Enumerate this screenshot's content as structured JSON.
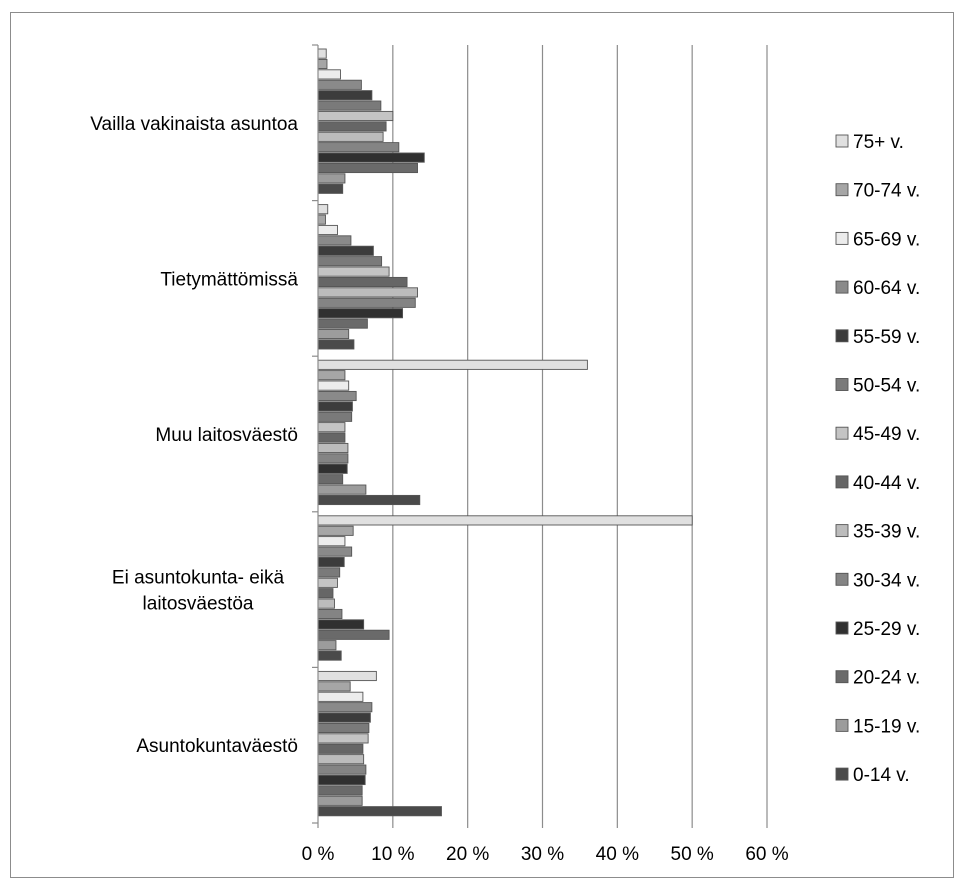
{
  "chart_data": {
    "type": "bar",
    "orientation": "horizontal",
    "categories": [
      [
        "Vailla vakinaista asuntoa"
      ],
      [
        "Tietymättömissä"
      ],
      [
        "Muu laitosväestö"
      ],
      [
        "Ei asuntokunta- eikä",
        "laitosväestöa"
      ],
      [
        "Asuntokuntaväestö"
      ]
    ],
    "series": [
      {
        "name": "75+ v.",
        "color": "#e0e0e0",
        "values": [
          1.1,
          1.3,
          36.0,
          50.0,
          7.8
        ]
      },
      {
        "name": "70-74 v.",
        "color": "#a6a6a6",
        "values": [
          1.2,
          1.0,
          3.6,
          4.7,
          4.3
        ]
      },
      {
        "name": "65-69 v.",
        "color": "#ececec",
        "values": [
          3.0,
          2.6,
          4.1,
          3.6,
          6.0
        ]
      },
      {
        "name": "60-64 v.",
        "color": "#8a8a8a",
        "values": [
          5.8,
          4.4,
          5.1,
          4.5,
          7.2
        ]
      },
      {
        "name": "55-59 v.",
        "color": "#3c3c3c",
        "values": [
          7.2,
          7.4,
          4.6,
          3.5,
          7.0
        ]
      },
      {
        "name": "50-54 v.",
        "color": "#7a7a7a",
        "values": [
          8.4,
          8.5,
          4.5,
          2.9,
          6.8
        ]
      },
      {
        "name": "45-49 v.",
        "color": "#c4c4c4",
        "values": [
          10.0,
          9.5,
          3.6,
          2.6,
          6.7
        ]
      },
      {
        "name": "40-44 v.",
        "color": "#666666",
        "values": [
          9.1,
          11.9,
          3.6,
          2.0,
          6.0
        ]
      },
      {
        "name": "35-39 v.",
        "color": "#bcbcbc",
        "values": [
          8.7,
          13.3,
          4.0,
          2.2,
          6.1
        ]
      },
      {
        "name": "30-34 v.",
        "color": "#848484",
        "values": [
          10.8,
          13.0,
          4.0,
          3.2,
          6.4
        ]
      },
      {
        "name": "25-29 v.",
        "color": "#303030",
        "values": [
          14.2,
          11.3,
          3.9,
          6.1,
          6.3
        ]
      },
      {
        "name": "20-24 v.",
        "color": "#6a6a6a",
        "values": [
          13.3,
          6.6,
          3.3,
          9.5,
          5.9
        ]
      },
      {
        "name": "15-19 v.",
        "color": "#9c9c9c",
        "values": [
          3.6,
          4.1,
          6.4,
          2.4,
          5.9
        ]
      },
      {
        "name": "0-14 v.",
        "color": "#4a4a4a",
        "values": [
          3.3,
          4.8,
          13.6,
          3.1,
          16.5
        ]
      }
    ],
    "x_ticks": [
      "0 %",
      "10 %",
      "20 %",
      "30 %",
      "40 %",
      "50 %",
      "60 %"
    ],
    "xlim": [
      0,
      60
    ],
    "grid": "vertical",
    "legend_position": "right"
  }
}
